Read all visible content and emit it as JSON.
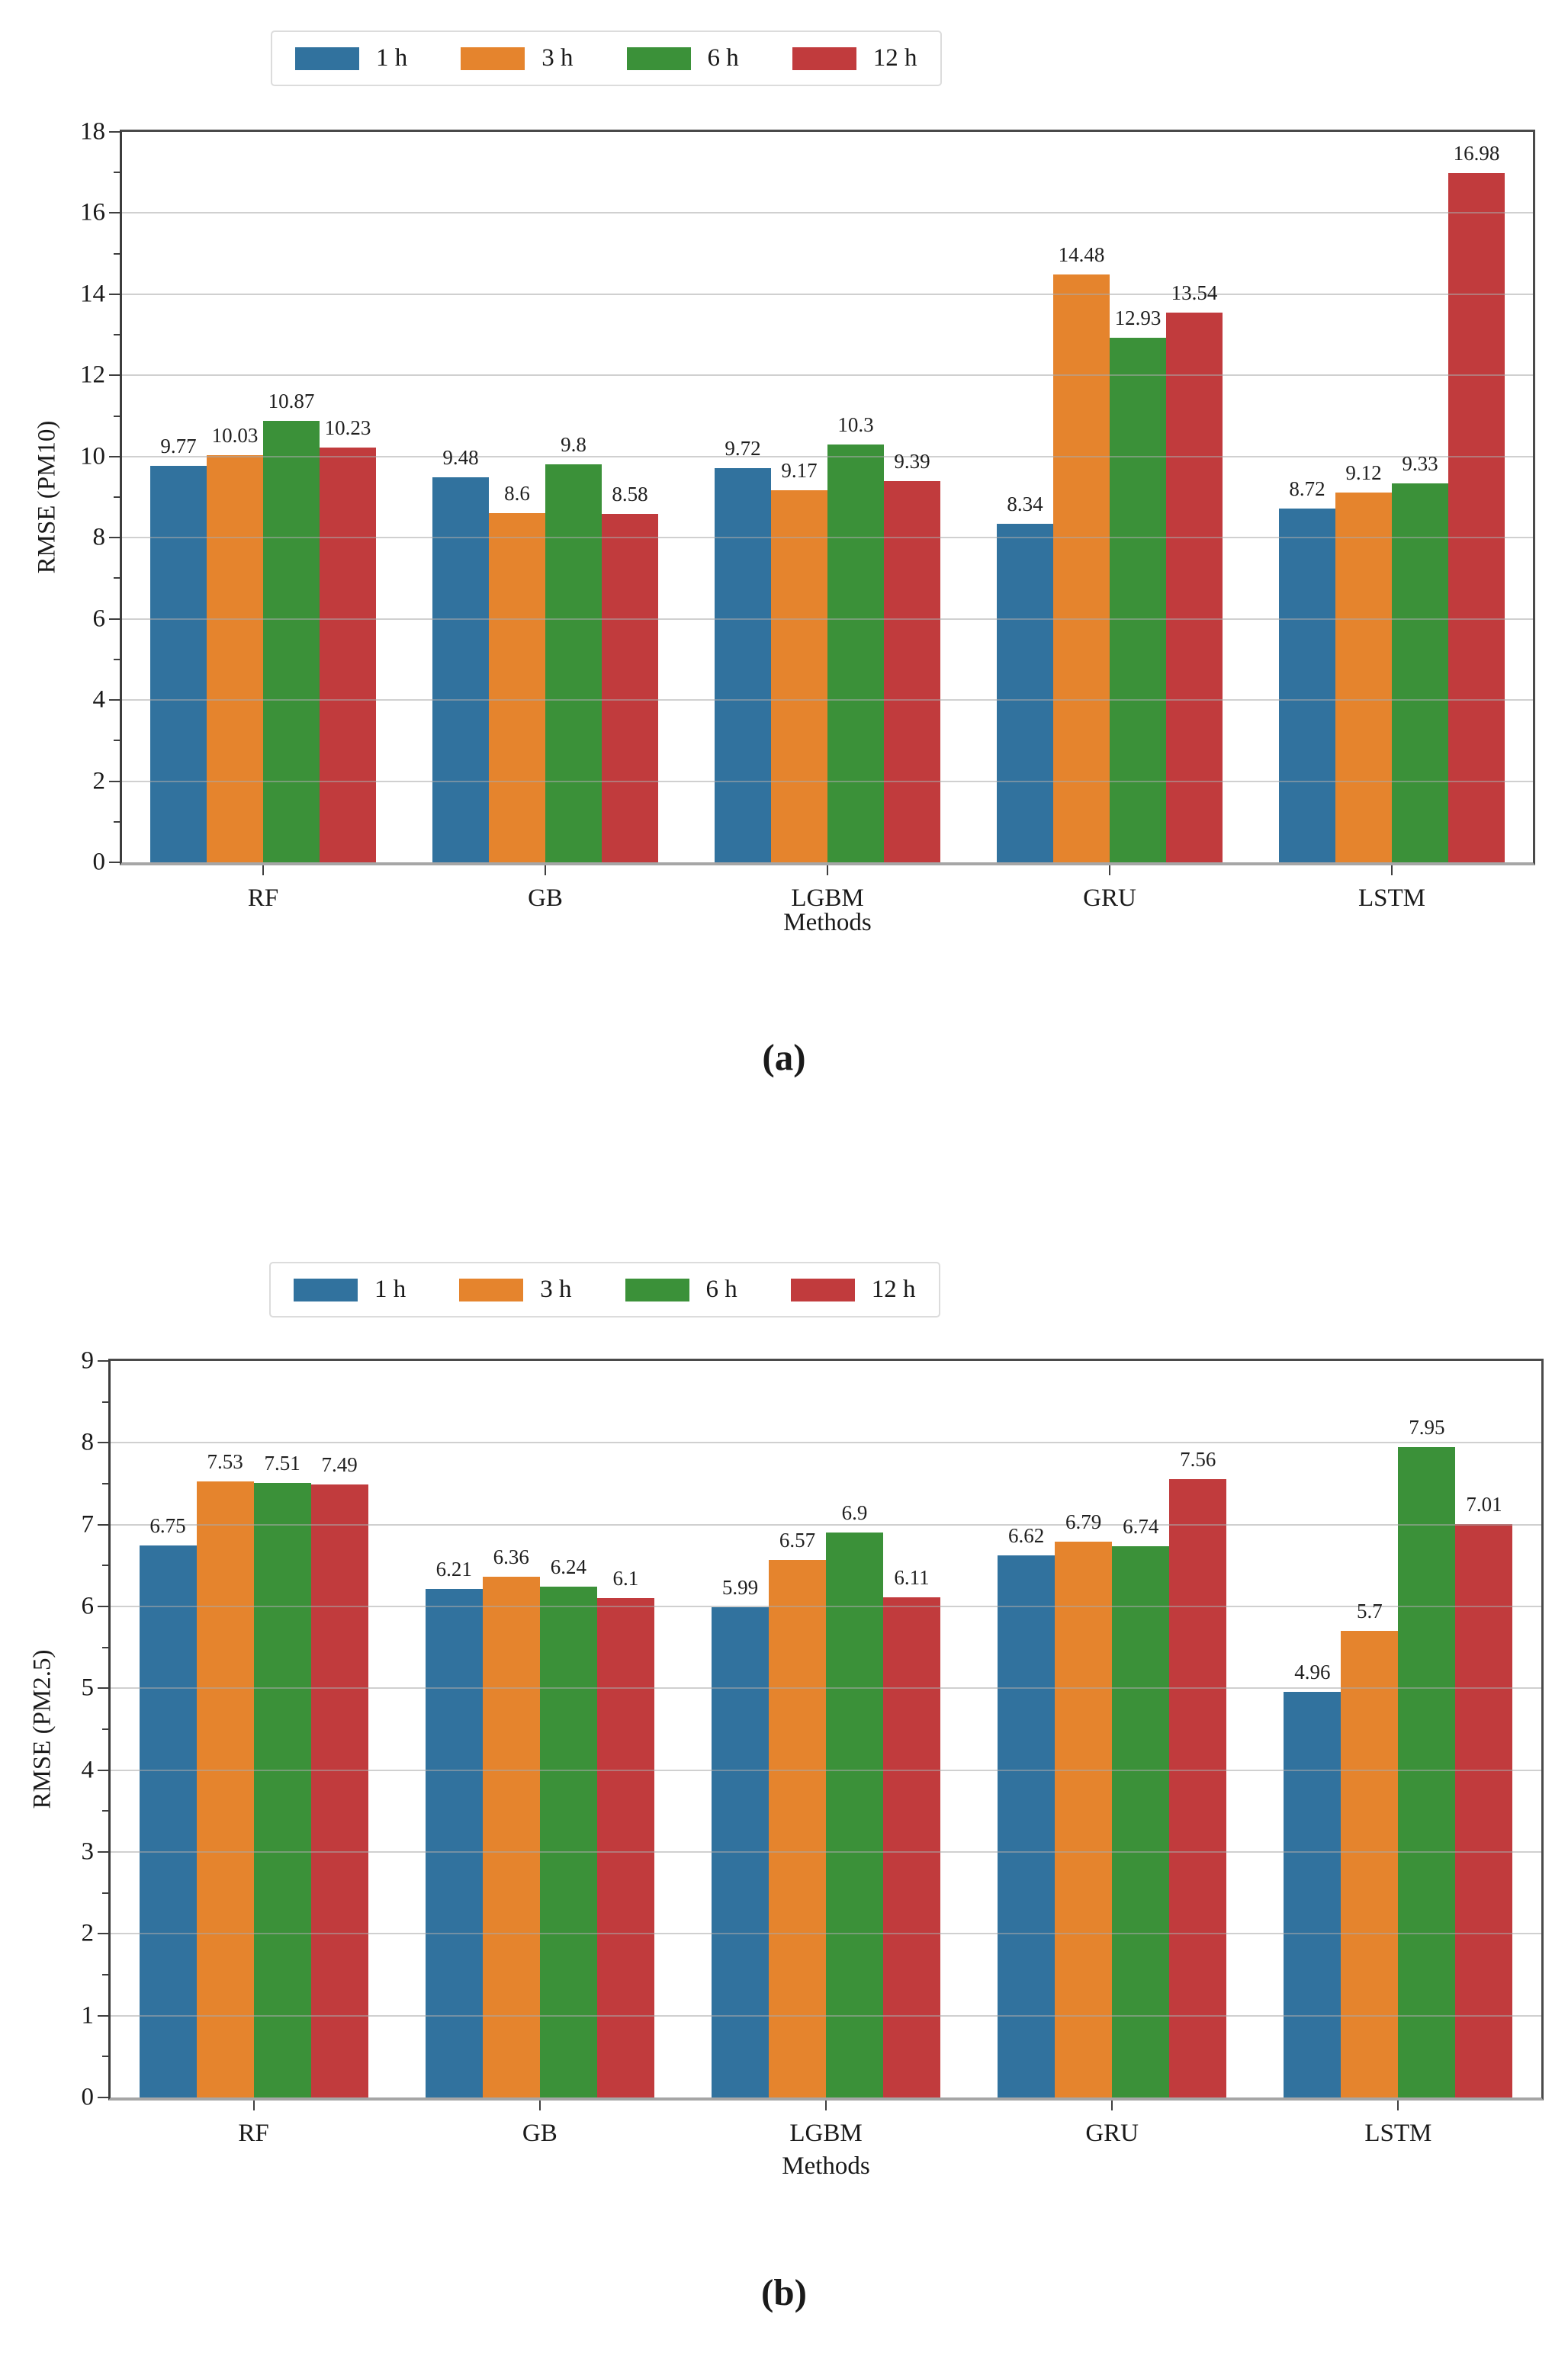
{
  "chart_data": [
    {
      "type": "bar",
      "caption": "(a)",
      "xlabel": "Methods",
      "ylabel": "RMSE (PM10)",
      "categories": [
        "RF",
        "GB",
        "LGBM",
        "GRU",
        "LSTM"
      ],
      "series": [
        {
          "name": "1 h",
          "color": "#31729e",
          "values": [
            9.77,
            9.48,
            9.72,
            8.34,
            8.72
          ]
        },
        {
          "name": "3 h",
          "color": "#e5842d",
          "values": [
            10.03,
            8.6,
            9.17,
            14.48,
            9.12
          ]
        },
        {
          "name": "6 h",
          "color": "#3b9139",
          "values": [
            10.87,
            9.8,
            10.3,
            12.93,
            9.33
          ]
        },
        {
          "name": "12 h",
          "color": "#c13b3d",
          "values": [
            10.23,
            8.58,
            9.39,
            13.54,
            16.98
          ]
        }
      ],
      "ylim": [
        0,
        18
      ],
      "yticks": [
        0,
        2,
        4,
        6,
        8,
        10,
        12,
        14,
        16,
        18
      ],
      "ytick_minor": 1,
      "grid": true,
      "legend_position": "top-left"
    },
    {
      "type": "bar",
      "caption": "(b)",
      "xlabel": "Methods",
      "ylabel": "RMSE (PM2.5)",
      "categories": [
        "RF",
        "GB",
        "LGBM",
        "GRU",
        "LSTM"
      ],
      "series": [
        {
          "name": "1 h",
          "color": "#31729e",
          "values": [
            6.75,
            6.21,
            5.99,
            6.62,
            4.96
          ]
        },
        {
          "name": "3 h",
          "color": "#e5842d",
          "values": [
            7.53,
            6.36,
            6.57,
            6.79,
            5.7
          ]
        },
        {
          "name": "6 h",
          "color": "#3b9139",
          "values": [
            7.51,
            6.24,
            6.9,
            6.74,
            7.95
          ]
        },
        {
          "name": "12 h",
          "color": "#c13b3d",
          "values": [
            7.49,
            6.1,
            6.11,
            7.56,
            7.01
          ]
        }
      ],
      "ylim": [
        0,
        9
      ],
      "yticks": [
        0,
        1,
        2,
        3,
        4,
        5,
        6,
        7,
        8,
        9
      ],
      "ytick_minor": 0.5,
      "grid": true,
      "legend_position": "top-left"
    }
  ]
}
